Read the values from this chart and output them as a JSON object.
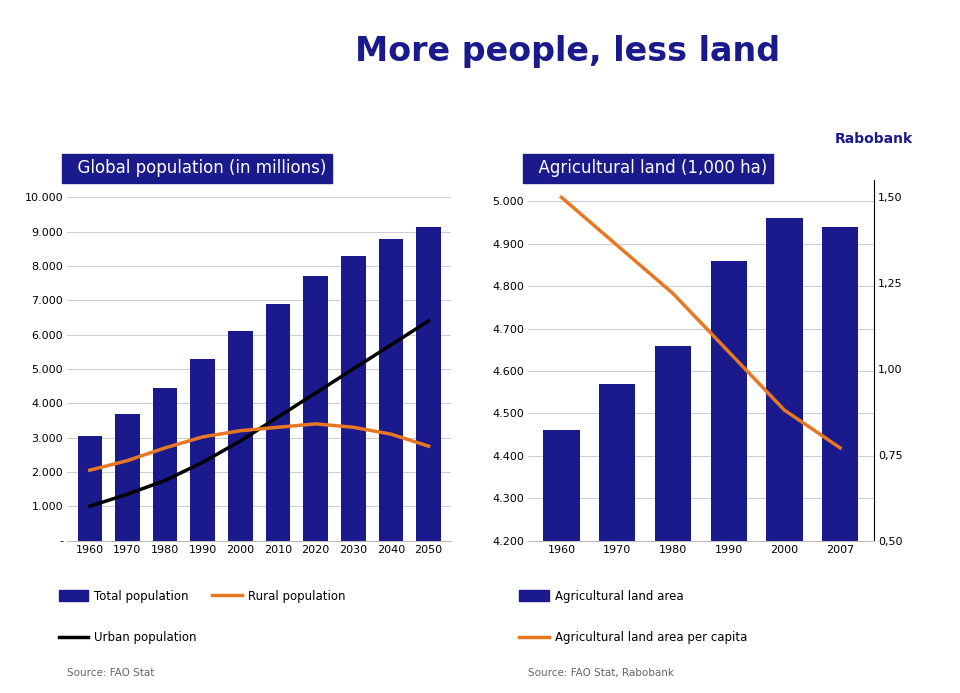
{
  "title": "More people, less land",
  "title_color": "#1a1a8c",
  "background_color": "#ffffff",
  "left_chart": {
    "subtitle": "Global population (in millions)",
    "subtitle_bg": "#1a1a8c",
    "subtitle_color": "#ffffff",
    "years": [
      1960,
      1970,
      1980,
      1990,
      2000,
      2010,
      2020,
      2030,
      2040,
      2050
    ],
    "total_pop": [
      3050,
      3680,
      4450,
      5300,
      6100,
      6900,
      7700,
      8300,
      8800,
      9150
    ],
    "bar_color": "#1a1a8c",
    "urban_pop": [
      1000,
      1350,
      1750,
      2280,
      2900,
      3600,
      4300,
      5000,
      5700,
      6400
    ],
    "urban_color": "#000000",
    "rural_pop": [
      2050,
      2330,
      2700,
      3020,
      3200,
      3300,
      3400,
      3300,
      3100,
      2750
    ],
    "rural_color": "#e87722",
    "ylim": [
      0,
      10500
    ],
    "yticks": [
      0,
      1000,
      2000,
      3000,
      4000,
      5000,
      6000,
      7000,
      8000,
      9000,
      10000
    ],
    "ytick_labels": [
      "-",
      "1.000",
      "2.000",
      "3.000",
      "4.000",
      "5.000",
      "6.000",
      "7.000",
      "8.000",
      "9.000",
      "10.000"
    ],
    "source": "Source: FAO Stat",
    "legend_row1": [
      {
        "label": "Total population",
        "color": "#1a1a8c",
        "type": "bar"
      },
      {
        "label": "Rural population",
        "color": "#e87722",
        "type": "line"
      }
    ],
    "legend_row2": [
      {
        "label": "Urban population",
        "color": "#000000",
        "type": "line"
      }
    ]
  },
  "right_chart": {
    "subtitle": "Agricultural land (1,000 ha)",
    "subtitle_bg": "#1a1a8c",
    "subtitle_color": "#ffffff",
    "years": [
      1960,
      1970,
      1980,
      1990,
      2000,
      2007
    ],
    "land_area": [
      4460,
      4570,
      4660,
      4860,
      4960,
      4940
    ],
    "bar_color": "#1a1a8c",
    "per_capita": [
      1.5,
      1.36,
      1.22,
      1.05,
      0.88,
      0.77
    ],
    "per_capita_color": "#e87722",
    "ylim_left": [
      4200,
      5050
    ],
    "yticks_left": [
      4200,
      4300,
      4400,
      4500,
      4600,
      4700,
      4800,
      4900,
      5000
    ],
    "ytick_labels_left": [
      "4.200",
      "4.300",
      "4.400",
      "4.500",
      "4.600",
      "4.700",
      "4.800",
      "4.900",
      "5.000"
    ],
    "ylim_right": [
      0.5,
      1.55
    ],
    "yticks_right": [
      0.5,
      0.75,
      1.0,
      1.25,
      1.5
    ],
    "ytick_labels_right": [
      "0,50",
      "0,75",
      "1,00",
      "1,25",
      "1,50"
    ],
    "source": "Source: FAO Stat, Rabobank",
    "legend_row1": [
      {
        "label": "Agricultural land area",
        "color": "#1a1a8c",
        "type": "bar"
      }
    ],
    "legend_row2": [
      {
        "label": "Agricultural land area per capita",
        "color": "#e87722",
        "type": "line"
      }
    ]
  }
}
